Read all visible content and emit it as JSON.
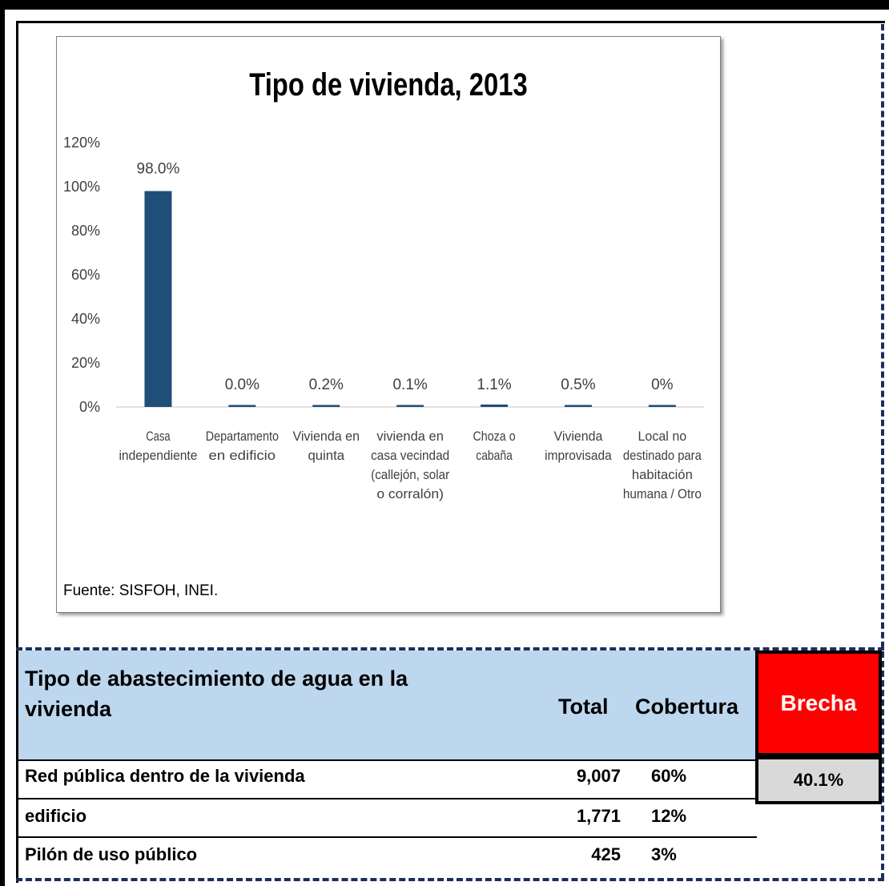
{
  "chart_data": {
    "type": "bar",
    "title": "Tipo de vivienda, 2013",
    "xlabel": "",
    "ylabel": "",
    "ylim": [
      0,
      120
    ],
    "y_ticks": [
      "0%",
      "20%",
      "40%",
      "60%",
      "80%",
      "100%",
      "120%"
    ],
    "y_tick_values": [
      0,
      20,
      40,
      60,
      80,
      100,
      120
    ],
    "categories": [
      [
        "Casa",
        "independiente"
      ],
      [
        "Departamento",
        "en edificio"
      ],
      [
        "Vivienda en",
        "quinta"
      ],
      [
        "vivienda en",
        "casa vecindad",
        "(callejón, solar",
        "o corralón)"
      ],
      [
        "Choza o",
        "cabaña"
      ],
      [
        "Vivienda",
        "improvisada"
      ],
      [
        "Local no",
        "destinado para",
        "habitación",
        "humana / Otro"
      ]
    ],
    "values": [
      98.0,
      0.0,
      0.2,
      0.1,
      1.1,
      0.5,
      0.0
    ],
    "data_labels": [
      "98.0%",
      "0.0%",
      "0.2%",
      "0.1%",
      "1.1%",
      "0.5%",
      "0%"
    ],
    "bar_color": "#1f4e79",
    "grid": false,
    "source": "Fuente: SISFOH, INEI."
  },
  "table": {
    "header_title": "Tipo de abastecimiento de agua en la vivienda",
    "header_total": "Total",
    "header_cobertura": "Cobertura",
    "header_brecha": "Brecha",
    "brecha_value": "40.1%",
    "rows": [
      {
        "label": "Red pública dentro de la vivienda",
        "total": "9,007",
        "cobertura": "60%"
      },
      {
        "label": "edificio",
        "total": "1,771",
        "cobertura": "12%"
      },
      {
        "label": "Pilón de uso público",
        "total": "425",
        "cobertura": "3%"
      }
    ],
    "colors": {
      "header_bg": "#bdd7ee",
      "brecha_bg": "#ff0000",
      "brecha_value_bg": "#d9d9d9"
    }
  }
}
